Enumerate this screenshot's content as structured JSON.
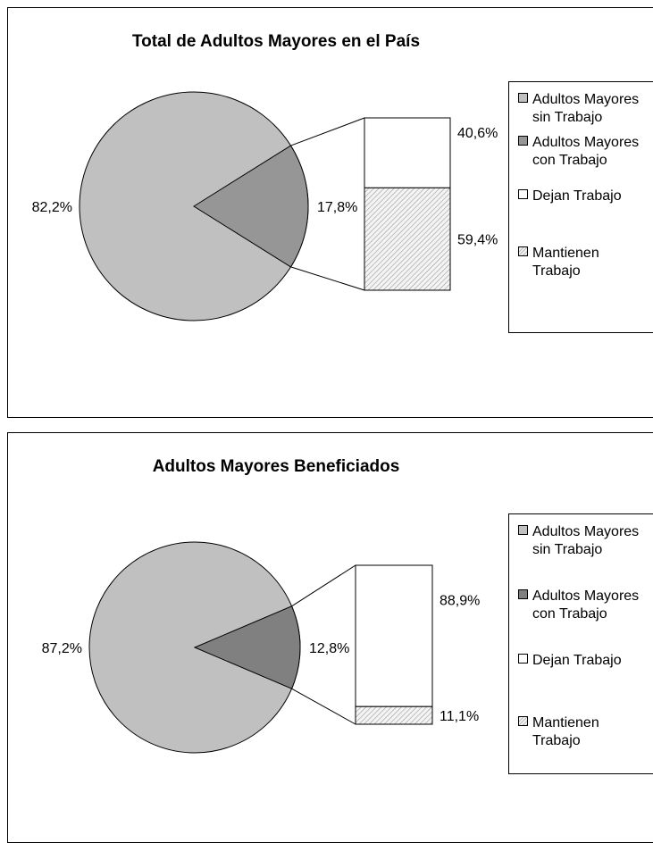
{
  "chart_data": [
    {
      "type": "pie",
      "title": "Total de Adultos Mayores en el País",
      "pie": {
        "slices": [
          {
            "name": "Adultos Mayores sin Trabajo",
            "value": 82.2,
            "label": "82,2%",
            "color": "#c0c0c0"
          },
          {
            "name": "Adultos Mayores con Trabajo",
            "value": 17.8,
            "label": "17,8%",
            "color": "#969696"
          }
        ]
      },
      "breakdown": {
        "segments": [
          {
            "name": "Dejan Trabajo",
            "value": 40.6,
            "label": "40,6%",
            "color": "#ffffff"
          },
          {
            "name": "Mantienen Trabajo",
            "value": 59.4,
            "label": "59,4%",
            "color": "hatch"
          }
        ]
      },
      "legend": [
        {
          "lines": [
            "Adultos Mayores",
            "sin Trabajo"
          ],
          "color": "#c0c0c0"
        },
        {
          "lines": [
            "Adultos Mayores",
            "con Trabajo"
          ],
          "color": "#969696"
        },
        {
          "lines": [
            "Dejan Trabajo"
          ],
          "color": "#ffffff"
        },
        {
          "lines": [
            "Mantienen",
            "Trabajo"
          ],
          "color": "hatch"
        }
      ]
    },
    {
      "type": "pie",
      "title": "Adultos Mayores Beneficiados",
      "pie": {
        "slices": [
          {
            "name": "Adultos Mayores sin Trabajo",
            "value": 87.2,
            "label": "87,2%",
            "color": "#c0c0c0"
          },
          {
            "name": "Adultos Mayores con Trabajo",
            "value": 12.8,
            "label": "12,8%",
            "color": "#808080"
          }
        ]
      },
      "breakdown": {
        "segments": [
          {
            "name": "Dejan Trabajo",
            "value": 88.9,
            "label": "88,9%",
            "color": "#ffffff"
          },
          {
            "name": "Mantienen Trabajo",
            "value": 11.1,
            "label": "11,1%",
            "color": "hatch"
          }
        ]
      },
      "legend": [
        {
          "lines": [
            "Adultos Mayores",
            "sin Trabajo"
          ],
          "color": "#c0c0c0"
        },
        {
          "lines": [
            "Adultos Mayores",
            "con Trabajo"
          ],
          "color": "#808080"
        },
        {
          "lines": [
            "Dejan Trabajo"
          ],
          "color": "#ffffff"
        },
        {
          "lines": [
            "Mantienen",
            "Trabajo"
          ],
          "color": "hatch"
        }
      ]
    }
  ]
}
